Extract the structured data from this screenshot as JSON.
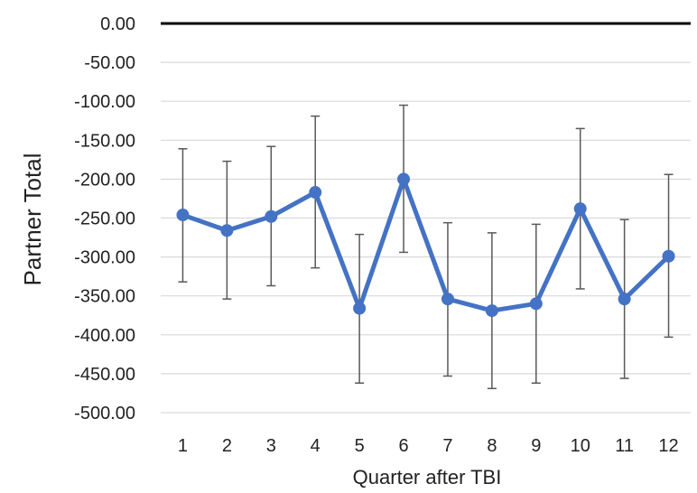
{
  "chart_data": {
    "type": "line",
    "title": "",
    "xlabel": "Quarter after TBI",
    "ylabel": "Partner Total",
    "categories": [
      "1",
      "2",
      "3",
      "4",
      "5",
      "6",
      "7",
      "8",
      "9",
      "10",
      "11",
      "12"
    ],
    "series": [
      {
        "values": [
          -246,
          -266,
          -248,
          -217,
          -366,
          -200,
          -354,
          -369,
          -360,
          -238,
          -354,
          -299
        ],
        "error_low": [
          -332,
          -354,
          -337,
          -314,
          -462,
          -294,
          -453,
          -469,
          -462,
          -341,
          -456,
          -403
        ],
        "error_high": [
          -161,
          -177,
          -158,
          -119,
          -271,
          -105,
          -256,
          -269,
          -258,
          -135,
          -252,
          -194
        ],
        "color": "#4472C4"
      }
    ],
    "ylim": [
      -500,
      0
    ],
    "yticks": [
      "0.00",
      "-50.00",
      "-100.00",
      "-150.00",
      "-200.00",
      "-250.00",
      "-300.00",
      "-350.00",
      "-400.00",
      "-450.00",
      "-500.00"
    ],
    "grid": true,
    "legend": "none",
    "colors": {
      "line": "#4472C4",
      "error_bar": "#595959",
      "grid": "#D9D9D9",
      "zero_line": "#000000"
    }
  }
}
